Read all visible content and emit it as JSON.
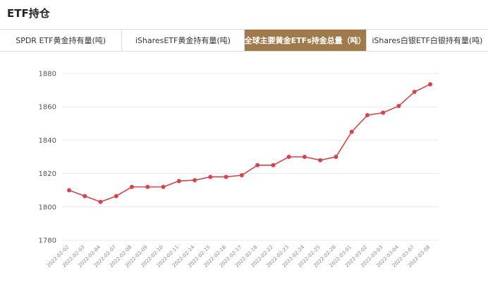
{
  "title": "ETF持仓",
  "tabs": [
    {
      "label": "SPDR ETF黄金持有量(吨)",
      "active": false
    },
    {
      "label": "iSharesETF黄金持有量(吨)",
      "active": false
    },
    {
      "label": "全球主要黄金ETFs持金总量（吨）",
      "active": true
    },
    {
      "label": "iShares白银ETF白银持有量(吨)",
      "active": false
    }
  ],
  "colors": {
    "accent": "#a07a4a",
    "line": "#d9424a",
    "grid": "#e8e8e8"
  },
  "chart_data": {
    "type": "line",
    "categories": [
      "2022-02-02",
      "2022-02-03",
      "2022-02-04",
      "2022-02-07",
      "2022-02-08",
      "2022-02-09",
      "2022-02-10",
      "2022-02-11",
      "2022-02-14",
      "2022-02-15",
      "2022-02-16",
      "2022-02-17",
      "2022-02-18",
      "2022-02-22",
      "2022-02-23",
      "2022-02-24",
      "2022-02-25",
      "2022-02-28",
      "2022-03-01",
      "2022-03-02",
      "2022-03-03",
      "2022-03-04",
      "2022-03-07",
      "2022-03-08"
    ],
    "series": [
      {
        "values": [
          1810,
          1806.5,
          1803,
          1806.5,
          1812,
          1812,
          1812,
          1815.5,
          1816,
          1818,
          1818,
          1819,
          1825,
          1825,
          1830,
          1830,
          1828,
          1830,
          1845,
          1855,
          1856.5,
          1860.5,
          1869,
          1873.5
        ]
      }
    ],
    "yticks": [
      1780,
      1800,
      1820,
      1840,
      1860,
      1880
    ],
    "ylim": [
      1780,
      1880
    ],
    "grid": true
  }
}
